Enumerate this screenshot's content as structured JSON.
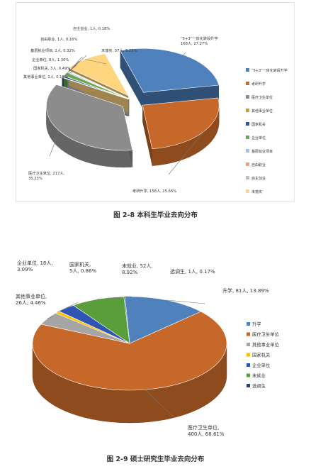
{
  "chart_data": [
    {
      "type": "pie",
      "caption": "图 2-8   本科生毕业去向分布",
      "slices": [
        {
          "name": "“5+3”一体化转段升学",
          "label": "“5+3”一体化转段升学\n168人, 27.27%",
          "value": 168,
          "percent": 27.27,
          "color": "#4f81bd"
        },
        {
          "name": "考研升学",
          "label": "考研升学, 158人, 25.65%",
          "value": 158,
          "percent": 25.65,
          "color": "#c5682a"
        },
        {
          "name": "医疗卫生单位",
          "label": "医疗卫生单位, 217人,\n35.23%",
          "value": 217,
          "percent": 35.23,
          "color": "#8c8c8c"
        },
        {
          "name": "其他事业单位",
          "label": "其他事业单位, 1人, 0.16%",
          "value": 1,
          "percent": 0.16,
          "color": "#c9a227"
        },
        {
          "name": "国家机关",
          "label": "国家机关, 3人, 0.49%",
          "value": 3,
          "percent": 0.49,
          "color": "#2f5597"
        },
        {
          "name": "企业单位",
          "label": "企业单位, 8人, 1.30%",
          "value": 8,
          "percent": 1.3,
          "color": "#6aa84f"
        },
        {
          "name": "基层就业项目",
          "label": "基层就业项目, 2人, 0.32%",
          "value": 2,
          "percent": 0.32,
          "color": "#9dc3e6"
        },
        {
          "name": "自由职业",
          "label": "自由职业, 1人, 0.16%",
          "value": 1,
          "percent": 0.16,
          "color": "#e8a572"
        },
        {
          "name": "自主创业",
          "label": "自主创业, 1人, 0.16%",
          "value": 1,
          "percent": 0.16,
          "color": "#bfbfbf"
        },
        {
          "name": "未落实",
          "label": "未落实, 57人, 9.25%",
          "value": 57,
          "percent": 9.25,
          "color": "#ffd580"
        }
      ],
      "legend": [
        "“5+3”一体化转段升学",
        "考研升学",
        "医疗卫生单位",
        "其他事业单位",
        "国家机关",
        "企业单位",
        "基层就业项目",
        "自由职业",
        "自主创业",
        "未落实"
      ],
      "legend_position": "right"
    },
    {
      "type": "pie",
      "caption": "图 2-9   硕士研究生毕业去向分布",
      "slices": [
        {
          "name": "升学",
          "label": "升学, 81人, 13.89%",
          "value": 81,
          "percent": 13.89,
          "color": "#4f81bd"
        },
        {
          "name": "医疗卫生单位",
          "label": "医疗卫生单位,\n400人, 68.61%",
          "value": 400,
          "percent": 68.61,
          "color": "#c5682a"
        },
        {
          "name": "其他事业单位",
          "label": "其他事业单位,\n26人, 4.46%",
          "value": 26,
          "percent": 4.46,
          "color": "#a5a5a5"
        },
        {
          "name": "国家机关",
          "label": "国家机关,\n5人, 0.86%",
          "value": 5,
          "percent": 0.86,
          "color": "#ffc000"
        },
        {
          "name": "企业单位",
          "label": "企业单位, 18人,\n3.09%",
          "value": 18,
          "percent": 3.09,
          "color": "#2e55b4"
        },
        {
          "name": "未就业",
          "label": "未就业, 52人,\n8.92%",
          "value": 52,
          "percent": 8.92,
          "color": "#5a9e3c"
        },
        {
          "name": "选调生",
          "label": "选调生, 1人, 0.17%",
          "value": 1,
          "percent": 0.17,
          "color": "#264478"
        }
      ],
      "legend": [
        "升学",
        "医疗卫生单位",
        "其他事业单位",
        "国家机关",
        "企业单位",
        "未就业",
        "选调生"
      ],
      "legend_position": "right"
    }
  ]
}
